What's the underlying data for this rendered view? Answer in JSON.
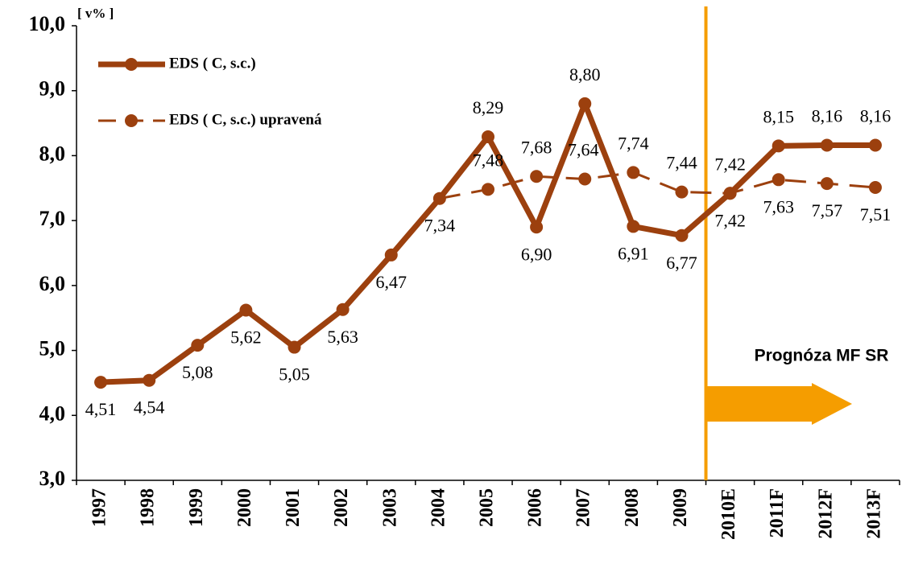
{
  "chart_data": {
    "type": "line",
    "unit_label": "[ v% ]",
    "annotation": "Prognóza MF SR",
    "categories": [
      "1997",
      "1998",
      "1999",
      "2000",
      "2001",
      "2002",
      "2003",
      "2004",
      "2005",
      "2006",
      "2007",
      "2008",
      "2009",
      "2010E",
      "2011F",
      "2012F",
      "2013F"
    ],
    "series": [
      {
        "name": "EDS ( C, s.c.)",
        "color": "#9c400e",
        "dashed": false,
        "values": [
          4.51,
          4.54,
          5.08,
          5.62,
          5.05,
          5.63,
          6.47,
          7.34,
          8.29,
          6.9,
          8.8,
          6.91,
          6.77,
          7.42,
          8.15,
          8.16,
          8.16
        ],
        "value_labels": [
          "4,51",
          "4,54",
          "5,08",
          "5,62",
          "5,05",
          "5,63",
          "6,47",
          "7,34",
          "8,29",
          "6,90",
          "8,80",
          "6,91",
          "6,77",
          "7,42",
          "8,15",
          "8,16",
          "8,16"
        ]
      },
      {
        "name": "EDS ( C, s.c.) upravená",
        "color": "#9c400e",
        "dashed": true,
        "values": [
          null,
          null,
          null,
          null,
          null,
          null,
          null,
          7.34,
          7.48,
          7.68,
          7.64,
          7.74,
          7.44,
          7.42,
          7.63,
          7.57,
          7.51
        ],
        "value_labels": [
          null,
          null,
          null,
          null,
          null,
          null,
          null,
          null,
          "7,48",
          "7,68",
          "7,64",
          "7,74",
          "7,44",
          "7,42",
          "7,63",
          "7,57",
          "7,51"
        ]
      }
    ],
    "ylim": [
      3,
      10
    ],
    "yticks": [
      {
        "value": 3,
        "label": "3,0"
      },
      {
        "value": 4,
        "label": "4,0"
      },
      {
        "value": 5,
        "label": "5,0"
      },
      {
        "value": 6,
        "label": "6,0"
      },
      {
        "value": 7,
        "label": "7,0"
      },
      {
        "value": 8,
        "label": "8,0"
      },
      {
        "value": 9,
        "label": "9,0"
      },
      {
        "value": 10,
        "label": "10,0"
      }
    ],
    "forecast_color": "#f59d00"
  }
}
